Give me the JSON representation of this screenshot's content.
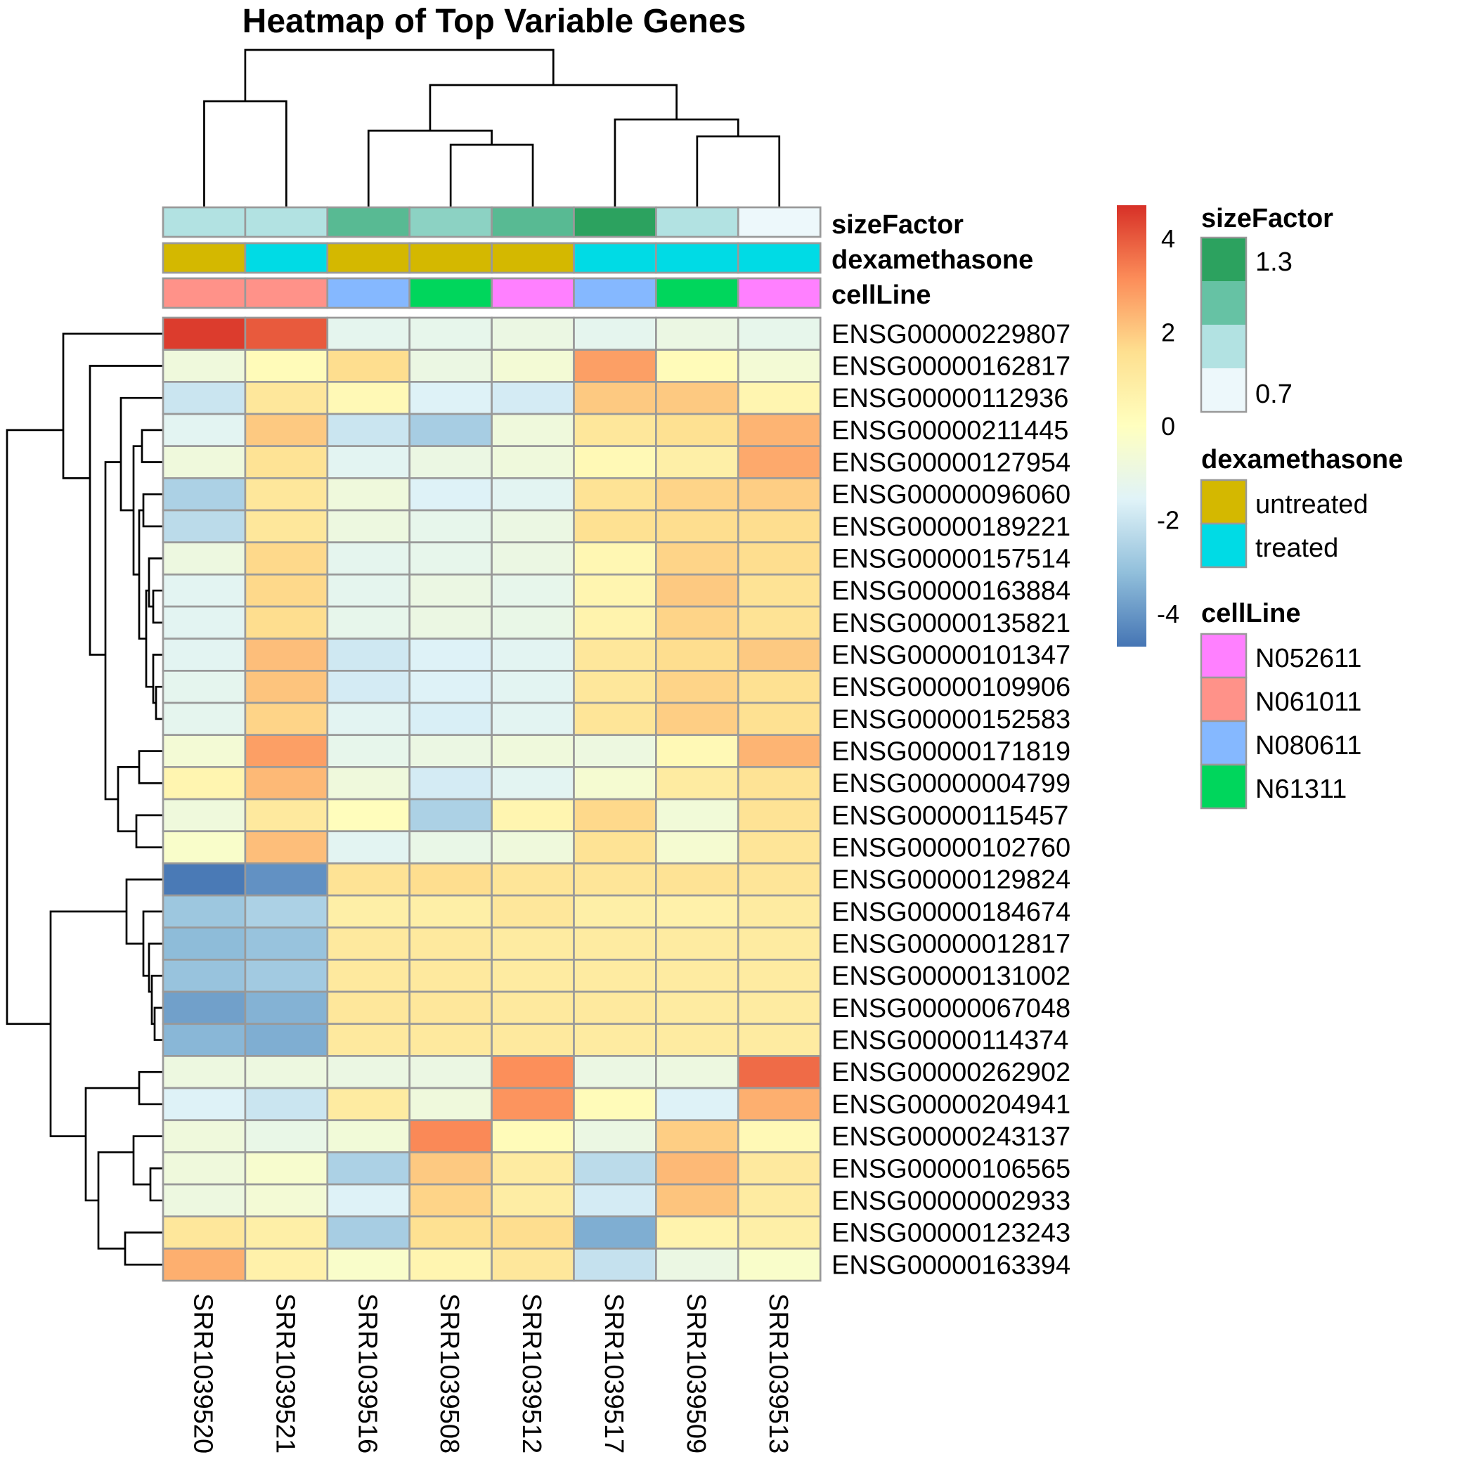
{
  "chart_data": {
    "type": "heatmap",
    "title": "Heatmap of Top Variable Genes",
    "columns": [
      "SRR1039520",
      "SRR1039521",
      "SRR1039516",
      "SRR1039508",
      "SRR1039512",
      "SRR1039517",
      "SRR1039509",
      "SRR1039513"
    ],
    "rows": [
      "ENSG00000229807",
      "ENSG00000162817",
      "ENSG00000112936",
      "ENSG00000211445",
      "ENSG00000127954",
      "ENSG00000096060",
      "ENSG00000189221",
      "ENSG00000157514",
      "ENSG00000163884",
      "ENSG00000135821",
      "ENSG00000101347",
      "ENSG00000109906",
      "ENSG00000152583",
      "ENSG00000171819",
      "ENSG00000004799",
      "ENSG00000115457",
      "ENSG00000102760",
      "ENSG00000129824",
      "ENSG00000184674",
      "ENSG00000012817",
      "ENSG00000131002",
      "ENSG00000067048",
      "ENSG00000114374",
      "ENSG00000262902",
      "ENSG00000204941",
      "ENSG00000243137",
      "ENSG00000106565",
      "ENSG00000002933",
      "ENSG00000123243",
      "ENSG00000163394"
    ],
    "values": [
      [
        4.5,
        4.0,
        -1.3,
        -1.2,
        -1.0,
        -1.3,
        -1.0,
        -1.2
      ],
      [
        -0.8,
        0.2,
        1.6,
        -1.0,
        -0.6,
        2.8,
        0.2,
        -0.6
      ],
      [
        -2.0,
        1.2,
        0.3,
        -1.6,
        -1.8,
        2.0,
        2.0,
        0.5
      ],
      [
        -1.4,
        2.0,
        -2.0,
        -2.7,
        -0.8,
        1.2,
        1.5,
        2.4
      ],
      [
        -0.8,
        1.4,
        -1.4,
        -1.0,
        -0.8,
        0.3,
        0.8,
        2.6
      ],
      [
        -2.6,
        1.2,
        -0.8,
        -1.6,
        -1.4,
        1.4,
        1.8,
        1.9
      ],
      [
        -2.3,
        1.2,
        -0.9,
        -1.2,
        -1.0,
        1.5,
        1.6,
        1.6
      ],
      [
        -0.9,
        1.7,
        -1.3,
        -1.2,
        -1.0,
        0.4,
        1.8,
        1.6
      ],
      [
        -1.4,
        1.7,
        -1.3,
        -1.0,
        -1.2,
        0.5,
        2.0,
        1.4
      ],
      [
        -1.4,
        1.6,
        -1.2,
        -1.0,
        -1.1,
        0.6,
        1.8,
        1.4
      ],
      [
        -1.4,
        2.2,
        -1.9,
        -1.6,
        -1.4,
        1.2,
        1.6,
        2.0
      ],
      [
        -1.3,
        2.1,
        -1.8,
        -1.6,
        -1.4,
        1.2,
        1.8,
        1.5
      ],
      [
        -1.3,
        1.8,
        -1.4,
        -1.7,
        -1.4,
        1.3,
        1.9,
        1.5
      ],
      [
        -0.6,
        2.8,
        -1.2,
        -1.0,
        -0.8,
        -0.9,
        0.3,
        2.4
      ],
      [
        0.5,
        2.3,
        -0.8,
        -1.8,
        -1.4,
        -0.5,
        1.0,
        1.4
      ],
      [
        -0.8,
        1.1,
        0.1,
        -2.6,
        0.5,
        1.7,
        -0.7,
        1.4
      ],
      [
        -0.3,
        2.2,
        -1.4,
        -1.1,
        -0.8,
        1.4,
        -0.5,
        1.3
      ],
      [
        -4.6,
        -4.1,
        1.4,
        1.6,
        1.3,
        1.3,
        1.4,
        1.3
      ],
      [
        -2.9,
        -2.6,
        0.8,
        0.8,
        1.2,
        0.8,
        0.7,
        1.0
      ],
      [
        -3.2,
        -3.0,
        1.1,
        1.1,
        1.0,
        1.0,
        1.0,
        1.0
      ],
      [
        -3.0,
        -2.8,
        1.1,
        1.1,
        1.0,
        1.0,
        1.0,
        1.0
      ],
      [
        -3.8,
        -3.4,
        1.2,
        1.2,
        1.1,
        1.1,
        1.0,
        1.0
      ],
      [
        -3.3,
        -3.5,
        1.1,
        1.1,
        1.1,
        1.0,
        1.0,
        1.0
      ],
      [
        -0.9,
        -0.9,
        -1.0,
        -1.0,
        3.1,
        -1.0,
        -0.9,
        3.7
      ],
      [
        -1.6,
        -2.0,
        1.0,
        -0.8,
        3.0,
        0.2,
        -1.6,
        2.5
      ],
      [
        -0.8,
        -1.1,
        -0.7,
        3.2,
        0.2,
        -1.0,
        1.9,
        0.3
      ],
      [
        -0.8,
        -0.4,
        -2.6,
        2.0,
        1.0,
        -2.3,
        2.3,
        1.1
      ],
      [
        -0.9,
        -0.6,
        -1.6,
        1.8,
        0.9,
        -1.8,
        2.1,
        1.0
      ],
      [
        1.2,
        0.8,
        -2.7,
        1.5,
        1.6,
        -3.5,
        0.6,
        0.8
      ],
      [
        2.5,
        0.7,
        -0.3,
        0.5,
        1.2,
        -2.1,
        -1.0,
        -0.3
      ]
    ],
    "annotations": {
      "sizeFactor": [
        0.9,
        0.9,
        1.15,
        1.0,
        1.15,
        1.3,
        0.9,
        0.7
      ],
      "dexamethasone": [
        "untreated",
        "treated",
        "untreated",
        "untreated",
        "untreated",
        "treated",
        "treated",
        "treated"
      ],
      "cellLine": [
        "N061011",
        "N061011",
        "N080611",
        "N61311",
        "N052611",
        "N080611",
        "N61311",
        "N052611"
      ]
    },
    "color_scale": {
      "ticks": [
        4,
        2,
        0,
        -2,
        -4
      ],
      "range": [
        -4.7,
        4.7
      ],
      "stops": [
        "#4575B4",
        "#91BFDB",
        "#E0F3F8",
        "#FFFFBF",
        "#FEE090",
        "#FC8D59",
        "#D73027"
      ]
    },
    "legends": {
      "sizeFactor": {
        "title": "sizeFactor",
        "labels": [
          "1.3",
          "0.7"
        ],
        "colors": [
          "#2CA25F",
          "#66C2A4",
          "#B2E2E2",
          "#EDF8FB"
        ]
      },
      "dexamethasone": {
        "title": "dexamethasone",
        "levels": [
          {
            "label": "untreated",
            "color": "#D4B800"
          },
          {
            "label": "treated",
            "color": "#00DBE5"
          }
        ]
      },
      "cellLine": {
        "title": "cellLine",
        "levels": [
          {
            "label": "N052611",
            "color": "#FF80FF"
          },
          {
            "label": "N061011",
            "color": "#FF9289"
          },
          {
            "label": "N080611",
            "color": "#85B8FF"
          },
          {
            "label": "N61311",
            "color": "#00D65C"
          }
        ]
      }
    }
  }
}
